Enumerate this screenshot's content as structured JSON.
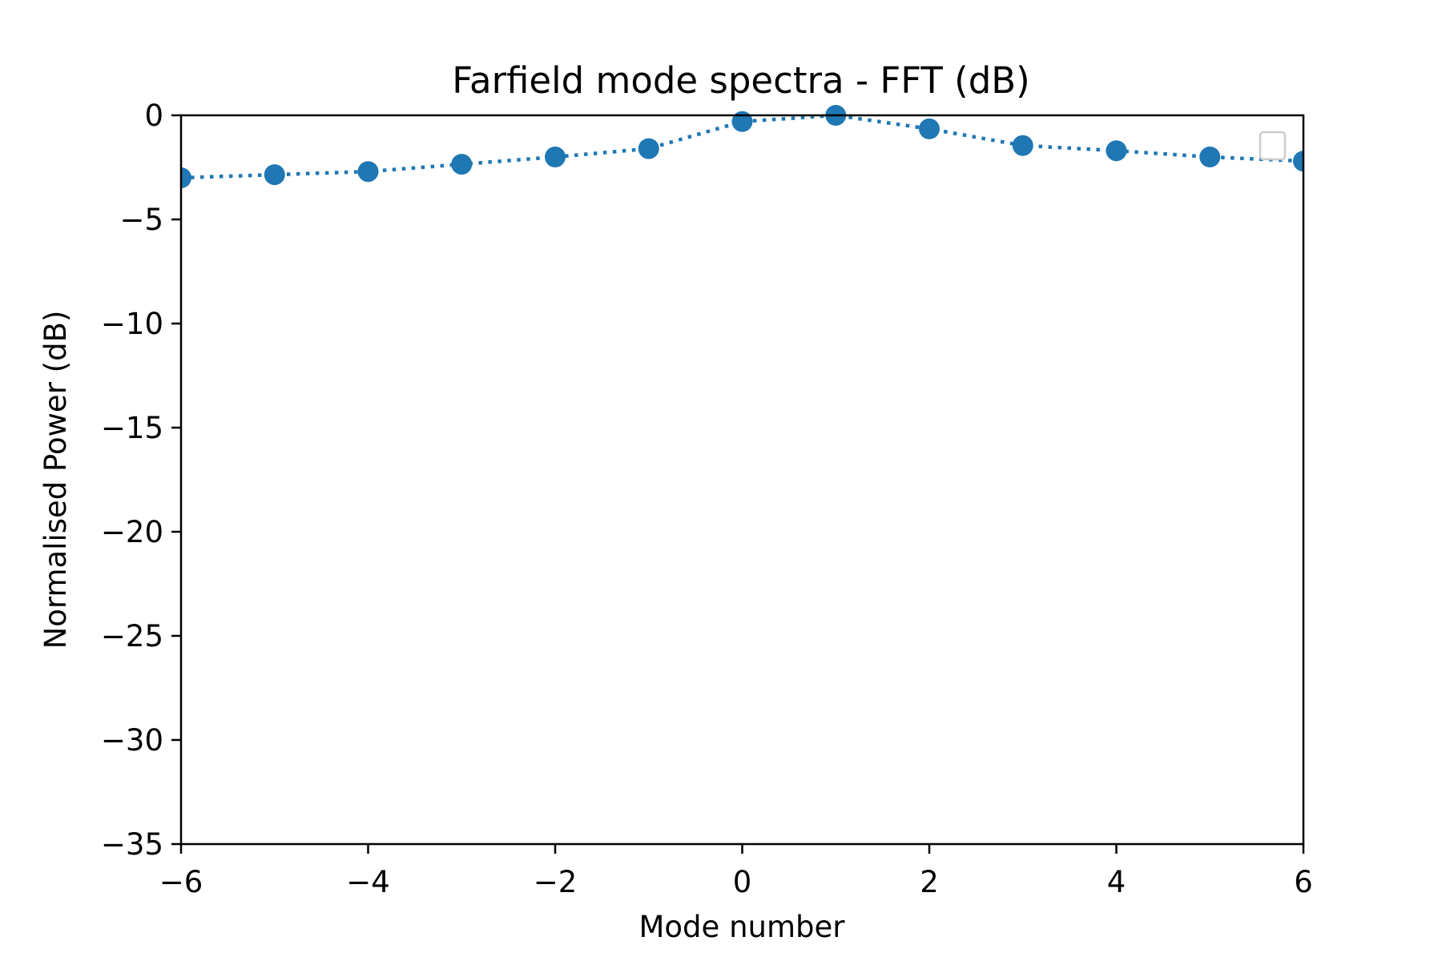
{
  "chart_data": {
    "type": "line",
    "title": "Farfield mode spectra - FFT (dB)",
    "xlabel": "Mode number",
    "ylabel": "Normalised Power (dB)",
    "xlim": [
      -6,
      6
    ],
    "ylim": [
      -35,
      0
    ],
    "xticks": [
      -6,
      -4,
      -2,
      0,
      2,
      4,
      6
    ],
    "xtick_labels": [
      "−6",
      "−4",
      "−2",
      "0",
      "2",
      "4",
      "6"
    ],
    "yticks": [
      0,
      -5,
      -10,
      -15,
      -20,
      -25,
      -30,
      -35
    ],
    "ytick_labels": [
      "0",
      "−5",
      "−10",
      "−15",
      "−20",
      "−25",
      "−30",
      "−35"
    ],
    "grid": false,
    "legend": "empty, upper right",
    "line_style": "dotted",
    "marker": "circle",
    "series_color": "#1f77b4",
    "series": [
      {
        "x": [
          -6,
          -5,
          -4,
          -3,
          -2,
          -1,
          0,
          1,
          2,
          3,
          4,
          5,
          6
        ],
        "values": [
          -3.0,
          -2.85,
          -2.7,
          -2.35,
          -2.0,
          -1.6,
          -0.3,
          0.0,
          -0.65,
          -1.45,
          -1.7,
          -2.0,
          -2.2
        ]
      }
    ]
  }
}
